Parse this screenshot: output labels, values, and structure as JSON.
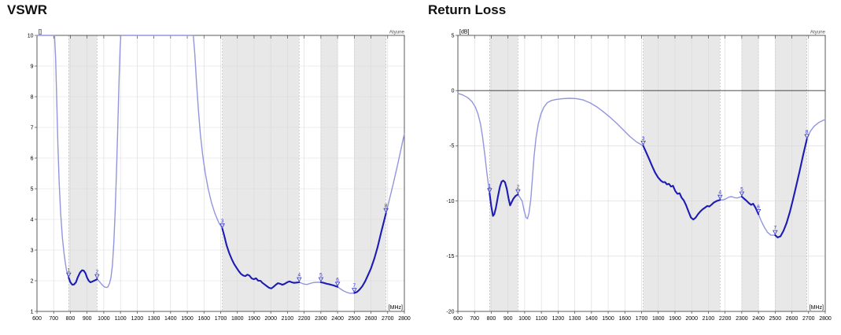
{
  "colors": {
    "trace": "#1c1cb4",
    "trace_light": "#9296dc",
    "marker": "#3434c8",
    "band": "#e8e8e8",
    "band_edge": "#c0c0c0",
    "grid": "#d9d9d9",
    "frame": "#4a4a4a",
    "text": "#000000",
    "watermark": "#555555",
    "zero_line": "#333333"
  },
  "chart_data": [
    {
      "type": "line",
      "title": "VSWR",
      "unit_label": "[]",
      "x_unit_label": "[MHz]",
      "watermark": "Atyune",
      "x_axis": {
        "min": 600,
        "max": 2800,
        "ticks": [
          600,
          700,
          800,
          900,
          1000,
          1100,
          1200,
          1300,
          1400,
          1500,
          1600,
          1700,
          1800,
          1900,
          2000,
          2100,
          2200,
          2300,
          2400,
          2500,
          2600,
          2700,
          2800
        ]
      },
      "y_axis": {
        "min": 1,
        "max": 10,
        "ticks": [
          10,
          9,
          8,
          7,
          6,
          5,
          4,
          3,
          2,
          1
        ],
        "zero_line": false
      },
      "bands": [
        [
          790,
          960
        ],
        [
          1710,
          2170
        ],
        [
          2300,
          2400
        ],
        [
          2500,
          2690
        ]
      ],
      "markers": [
        {
          "label": "1",
          "f": 790,
          "v": 2.1
        },
        {
          "label": "2",
          "f": 960,
          "v": 2.05
        },
        {
          "label": "3",
          "f": 1710,
          "v": 3.7
        },
        {
          "label": "4",
          "f": 2170,
          "v": 1.95
        },
        {
          "label": "5",
          "f": 2300,
          "v": 1.95
        },
        {
          "label": "6",
          "f": 2400,
          "v": 1.8
        },
        {
          "label": "7",
          "f": 2500,
          "v": 1.6
        },
        {
          "label": "8",
          "f": 2690,
          "v": 4.2
        }
      ],
      "points": [
        [
          600,
          10
        ],
        [
          705,
          10
        ],
        [
          712,
          9.2
        ],
        [
          718,
          8.0
        ],
        [
          725,
          6.5
        ],
        [
          733,
          5.2
        ],
        [
          742,
          4.2
        ],
        [
          752,
          3.4
        ],
        [
          763,
          2.85
        ],
        [
          775,
          2.4
        ],
        [
          783,
          2.22
        ],
        [
          790,
          2.1
        ],
        [
          800,
          1.95
        ],
        [
          812,
          1.87
        ],
        [
          822,
          1.88
        ],
        [
          833,
          1.95
        ],
        [
          845,
          2.12
        ],
        [
          858,
          2.27
        ],
        [
          870,
          2.34
        ],
        [
          880,
          2.33
        ],
        [
          890,
          2.25
        ],
        [
          900,
          2.1
        ],
        [
          910,
          2.0
        ],
        [
          920,
          1.95
        ],
        [
          930,
          1.97
        ],
        [
          942,
          2.0
        ],
        [
          950,
          2.02
        ],
        [
          960,
          2.05
        ],
        [
          970,
          2.0
        ],
        [
          980,
          1.93
        ],
        [
          992,
          1.86
        ],
        [
          1004,
          1.8
        ],
        [
          1015,
          1.78
        ],
        [
          1025,
          1.8
        ],
        [
          1035,
          1.92
        ],
        [
          1043,
          2.1
        ],
        [
          1052,
          2.5
        ],
        [
          1060,
          3.2
        ],
        [
          1068,
          4.2
        ],
        [
          1076,
          5.5
        ],
        [
          1084,
          7.0
        ],
        [
          1092,
          8.6
        ],
        [
          1098,
          9.6
        ],
        [
          1102,
          10
        ],
        [
          1536,
          10
        ],
        [
          1545,
          9.4
        ],
        [
          1555,
          8.5
        ],
        [
          1566,
          7.6
        ],
        [
          1578,
          6.8
        ],
        [
          1592,
          6.1
        ],
        [
          1608,
          5.5
        ],
        [
          1625,
          5.0
        ],
        [
          1645,
          4.55
        ],
        [
          1665,
          4.2
        ],
        [
          1688,
          3.9
        ],
        [
          1710,
          3.7
        ],
        [
          1722,
          3.45
        ],
        [
          1736,
          3.15
        ],
        [
          1750,
          2.92
        ],
        [
          1765,
          2.72
        ],
        [
          1780,
          2.55
        ],
        [
          1795,
          2.42
        ],
        [
          1810,
          2.3
        ],
        [
          1822,
          2.22
        ],
        [
          1835,
          2.17
        ],
        [
          1848,
          2.15
        ],
        [
          1860,
          2.2
        ],
        [
          1872,
          2.17
        ],
        [
          1885,
          2.08
        ],
        [
          1898,
          2.05
        ],
        [
          1912,
          2.08
        ],
        [
          1925,
          2.0
        ],
        [
          1938,
          2.0
        ],
        [
          1950,
          1.93
        ],
        [
          1963,
          1.88
        ],
        [
          1977,
          1.82
        ],
        [
          1990,
          1.77
        ],
        [
          2003,
          1.75
        ],
        [
          2016,
          1.8
        ],
        [
          2030,
          1.87
        ],
        [
          2043,
          1.92
        ],
        [
          2056,
          1.9
        ],
        [
          2070,
          1.87
        ],
        [
          2084,
          1.9
        ],
        [
          2098,
          1.95
        ],
        [
          2112,
          1.98
        ],
        [
          2126,
          1.95
        ],
        [
          2140,
          1.93
        ],
        [
          2155,
          1.94
        ],
        [
          2170,
          1.95
        ],
        [
          2185,
          1.92
        ],
        [
          2200,
          1.89
        ],
        [
          2218,
          1.88
        ],
        [
          2235,
          1.91
        ],
        [
          2255,
          1.94
        ],
        [
          2275,
          1.95
        ],
        [
          2300,
          1.95
        ],
        [
          2318,
          1.93
        ],
        [
          2336,
          1.9
        ],
        [
          2355,
          1.88
        ],
        [
          2375,
          1.85
        ],
        [
          2400,
          1.8
        ],
        [
          2418,
          1.73
        ],
        [
          2436,
          1.67
        ],
        [
          2455,
          1.62
        ],
        [
          2475,
          1.59
        ],
        [
          2500,
          1.6
        ],
        [
          2515,
          1.63
        ],
        [
          2530,
          1.7
        ],
        [
          2548,
          1.82
        ],
        [
          2565,
          1.98
        ],
        [
          2582,
          2.18
        ],
        [
          2600,
          2.4
        ],
        [
          2620,
          2.72
        ],
        [
          2640,
          3.1
        ],
        [
          2662,
          3.6
        ],
        [
          2690,
          4.2
        ],
        [
          2712,
          4.68
        ],
        [
          2735,
          5.2
        ],
        [
          2758,
          5.75
        ],
        [
          2780,
          6.3
        ],
        [
          2800,
          6.8
        ]
      ]
    },
    {
      "type": "line",
      "title": "Return Loss",
      "unit_label": "[dB]",
      "x_unit_label": "[MHz]",
      "watermark": "Atyune",
      "x_axis": {
        "min": 600,
        "max": 2800,
        "ticks": [
          600,
          700,
          800,
          900,
          1000,
          1100,
          1200,
          1300,
          1400,
          1500,
          1600,
          1700,
          1800,
          1900,
          2000,
          2100,
          2200,
          2300,
          2400,
          2500,
          2600,
          2700,
          2800
        ]
      },
      "y_axis": {
        "min": -20,
        "max": 5,
        "ticks": [
          5,
          0,
          -5,
          -10,
          -15,
          -20
        ],
        "zero_line": true
      },
      "bands": [
        [
          790,
          960
        ],
        [
          1710,
          2170
        ],
        [
          2300,
          2400
        ],
        [
          2500,
          2690
        ]
      ],
      "markers": [
        {
          "label": "1",
          "f": 790,
          "v": -9.3
        },
        {
          "label": "2",
          "f": 960,
          "v": -9.4
        },
        {
          "label": "3",
          "f": 1710,
          "v": -5.0
        },
        {
          "label": "4",
          "f": 2170,
          "v": -9.9
        },
        {
          "label": "5",
          "f": 2300,
          "v": -9.6
        },
        {
          "label": "6",
          "f": 2400,
          "v": -11.2
        },
        {
          "label": "7",
          "f": 2500,
          "v": -13.1
        },
        {
          "label": "8",
          "f": 2690,
          "v": -4.4
        }
      ],
      "points": [
        [
          600,
          -0.25
        ],
        [
          630,
          -0.4
        ],
        [
          660,
          -0.65
        ],
        [
          685,
          -1.0
        ],
        [
          705,
          -1.5
        ],
        [
          720,
          -2.1
        ],
        [
          735,
          -3.0
        ],
        [
          748,
          -4.2
        ],
        [
          762,
          -5.9
        ],
        [
          775,
          -7.6
        ],
        [
          790,
          -9.3
        ],
        [
          800,
          -10.5
        ],
        [
          810,
          -11.35
        ],
        [
          818,
          -11.2
        ],
        [
          828,
          -10.6
        ],
        [
          840,
          -9.6
        ],
        [
          852,
          -8.7
        ],
        [
          862,
          -8.25
        ],
        [
          872,
          -8.15
        ],
        [
          882,
          -8.3
        ],
        [
          893,
          -8.9
        ],
        [
          904,
          -9.8
        ],
        [
          913,
          -10.4
        ],
        [
          922,
          -10.1
        ],
        [
          932,
          -9.8
        ],
        [
          945,
          -9.55
        ],
        [
          960,
          -9.4
        ],
        [
          972,
          -9.7
        ],
        [
          985,
          -10.0
        ],
        [
          997,
          -10.9
        ],
        [
          1008,
          -11.5
        ],
        [
          1017,
          -11.6
        ],
        [
          1026,
          -11.1
        ],
        [
          1036,
          -9.9
        ],
        [
          1046,
          -8.0
        ],
        [
          1056,
          -6.0
        ],
        [
          1068,
          -4.3
        ],
        [
          1082,
          -3.0
        ],
        [
          1098,
          -2.1
        ],
        [
          1115,
          -1.5
        ],
        [
          1135,
          -1.1
        ],
        [
          1160,
          -0.9
        ],
        [
          1190,
          -0.8
        ],
        [
          1230,
          -0.73
        ],
        [
          1270,
          -0.7
        ],
        [
          1310,
          -0.73
        ],
        [
          1350,
          -0.85
        ],
        [
          1390,
          -1.1
        ],
        [
          1430,
          -1.45
        ],
        [
          1470,
          -1.9
        ],
        [
          1510,
          -2.4
        ],
        [
          1550,
          -2.95
        ],
        [
          1590,
          -3.55
        ],
        [
          1630,
          -4.15
        ],
        [
          1670,
          -4.65
        ],
        [
          1710,
          -5.0
        ],
        [
          1728,
          -5.6
        ],
        [
          1745,
          -6.2
        ],
        [
          1762,
          -6.8
        ],
        [
          1780,
          -7.4
        ],
        [
          1798,
          -7.85
        ],
        [
          1815,
          -8.15
        ],
        [
          1828,
          -8.3
        ],
        [
          1840,
          -8.28
        ],
        [
          1852,
          -8.5
        ],
        [
          1864,
          -8.45
        ],
        [
          1876,
          -8.7
        ],
        [
          1888,
          -8.62
        ],
        [
          1902,
          -9.1
        ],
        [
          1915,
          -9.35
        ],
        [
          1928,
          -9.3
        ],
        [
          1940,
          -9.7
        ],
        [
          1953,
          -9.95
        ],
        [
          1967,
          -10.4
        ],
        [
          1982,
          -11.0
        ],
        [
          1996,
          -11.5
        ],
        [
          2010,
          -11.68
        ],
        [
          2024,
          -11.5
        ],
        [
          2038,
          -11.2
        ],
        [
          2052,
          -10.95
        ],
        [
          2066,
          -10.75
        ],
        [
          2080,
          -10.6
        ],
        [
          2094,
          -10.45
        ],
        [
          2106,
          -10.5
        ],
        [
          2118,
          -10.35
        ],
        [
          2132,
          -10.15
        ],
        [
          2150,
          -10.0
        ],
        [
          2170,
          -9.9
        ],
        [
          2188,
          -9.9
        ],
        [
          2205,
          -9.8
        ],
        [
          2222,
          -9.65
        ],
        [
          2240,
          -9.6
        ],
        [
          2258,
          -9.7
        ],
        [
          2275,
          -9.72
        ],
        [
          2288,
          -9.65
        ],
        [
          2300,
          -9.6
        ],
        [
          2315,
          -9.8
        ],
        [
          2330,
          -10.0
        ],
        [
          2343,
          -10.2
        ],
        [
          2356,
          -10.35
        ],
        [
          2368,
          -10.25
        ],
        [
          2382,
          -10.6
        ],
        [
          2400,
          -11.2
        ],
        [
          2418,
          -11.85
        ],
        [
          2436,
          -12.4
        ],
        [
          2455,
          -12.85
        ],
        [
          2475,
          -13.1
        ],
        [
          2500,
          -13.1
        ],
        [
          2515,
          -13.3
        ],
        [
          2532,
          -13.2
        ],
        [
          2550,
          -12.7
        ],
        [
          2568,
          -12.0
        ],
        [
          2588,
          -11.0
        ],
        [
          2608,
          -9.8
        ],
        [
          2628,
          -8.5
        ],
        [
          2648,
          -7.2
        ],
        [
          2668,
          -5.8
        ],
        [
          2690,
          -4.4
        ],
        [
          2710,
          -3.7
        ],
        [
          2732,
          -3.25
        ],
        [
          2760,
          -2.9
        ],
        [
          2800,
          -2.6
        ]
      ]
    }
  ]
}
